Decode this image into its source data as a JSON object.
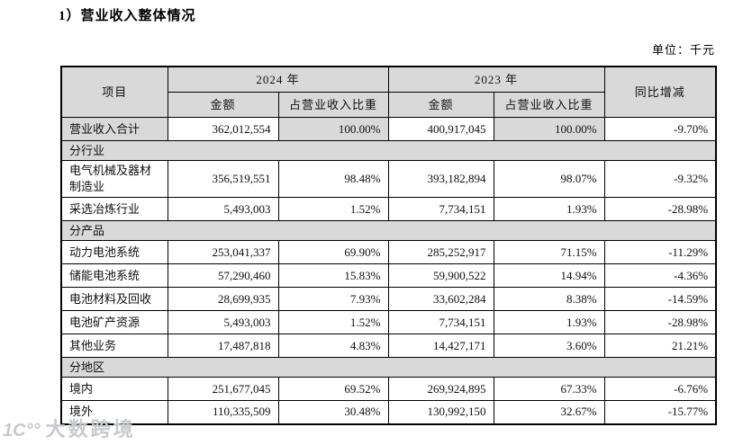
{
  "page": {
    "title": "1）营业收入整体情况",
    "unit_label": "单位：千元",
    "watermark": {
      "logo": "1C°°",
      "text": "大数跨境"
    }
  },
  "colors": {
    "table_header_bg": "#d9d9d9",
    "border": "#000000",
    "watermark": "#c7c9cc"
  },
  "table": {
    "header": {
      "item": "项目",
      "year_2024": "2024 年",
      "year_2023": "2023 年",
      "amount": "金额",
      "ratio": "占营业收入比重",
      "yoy": "同比增减"
    },
    "rows": [
      {
        "type": "data",
        "label": "营业收入合计",
        "a2024": "362,012,554",
        "r2024": "100.00%",
        "a2023": "400,917,045",
        "r2023": "100.00%",
        "yoy": "-9.70%",
        "shaded": true
      },
      {
        "type": "section",
        "label": "分行业"
      },
      {
        "type": "data",
        "label": "电气机械及器材制造业",
        "a2024": "356,519,551",
        "r2024": "98.48%",
        "a2023": "393,182,894",
        "r2023": "98.07%",
        "yoy": "-9.32%",
        "tall": true
      },
      {
        "type": "data",
        "label": "采选冶炼行业",
        "a2024": "5,493,003",
        "r2024": "1.52%",
        "a2023": "7,734,151",
        "r2023": "1.93%",
        "yoy": "-28.98%"
      },
      {
        "type": "section",
        "label": "分产品"
      },
      {
        "type": "data",
        "label": "动力电池系统",
        "a2024": "253,041,337",
        "r2024": "69.90%",
        "a2023": "285,252,917",
        "r2023": "71.15%",
        "yoy": "-11.29%"
      },
      {
        "type": "data",
        "label": "储能电池系统",
        "a2024": "57,290,460",
        "r2024": "15.83%",
        "a2023": "59,900,522",
        "r2023": "14.94%",
        "yoy": "-4.36%"
      },
      {
        "type": "data",
        "label": "电池材料及回收",
        "a2024": "28,699,935",
        "r2024": "7.93%",
        "a2023": "33,602,284",
        "r2023": "8.38%",
        "yoy": "-14.59%"
      },
      {
        "type": "data",
        "label": "电池矿产资源",
        "a2024": "5,493,003",
        "r2024": "1.52%",
        "a2023": "7,734,151",
        "r2023": "1.93%",
        "yoy": "-28.98%"
      },
      {
        "type": "data",
        "label": "其他业务",
        "a2024": "17,487,818",
        "r2024": "4.83%",
        "a2023": "14,427,171",
        "r2023": "3.60%",
        "yoy": "21.21%"
      },
      {
        "type": "section",
        "label": "分地区"
      },
      {
        "type": "data",
        "label": "境内",
        "a2024": "251,677,045",
        "r2024": "69.52%",
        "a2023": "269,924,895",
        "r2023": "67.33%",
        "yoy": "-6.76%"
      },
      {
        "type": "data",
        "label": "境外",
        "a2024": "110,335,509",
        "r2024": "30.48%",
        "a2023": "130,992,150",
        "r2023": "32.67%",
        "yoy": "-15.77%"
      }
    ]
  }
}
